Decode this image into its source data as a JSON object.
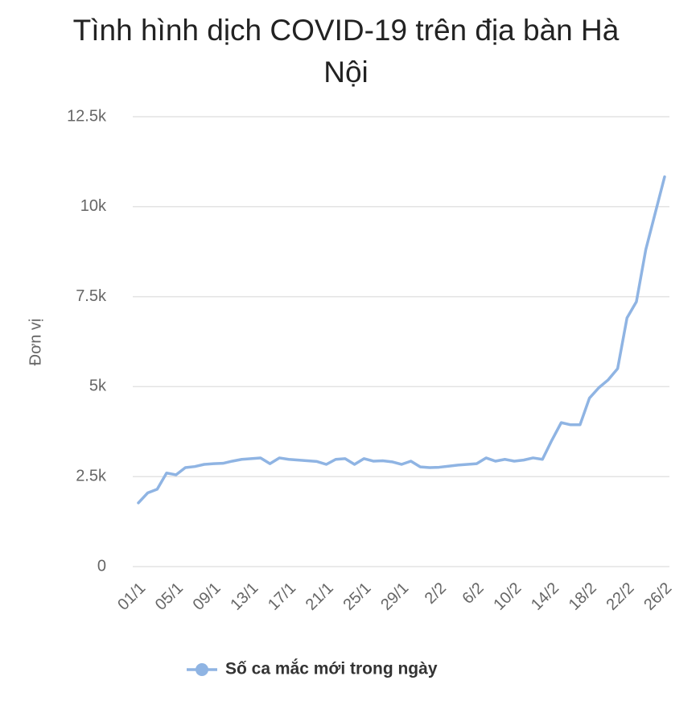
{
  "chart_data": {
    "type": "line",
    "title": "Tình hình dịch COVID-19 trên địa bàn Hà Nội",
    "y_label": "Đơn vị",
    "categories": [
      "01/1",
      null,
      null,
      null,
      "05/1",
      null,
      null,
      null,
      "09/1",
      null,
      null,
      null,
      "13/1",
      null,
      null,
      null,
      "17/1",
      null,
      null,
      null,
      "21/1",
      null,
      null,
      null,
      "25/1",
      null,
      null,
      null,
      "29/1",
      null,
      null,
      null,
      "2/2",
      null,
      null,
      null,
      "6/2",
      null,
      null,
      null,
      "10/2",
      null,
      null,
      null,
      "14/2",
      null,
      null,
      null,
      "18/2",
      null,
      null,
      null,
      "22/2",
      null,
      null,
      null,
      "26/2"
    ],
    "series": [
      {
        "name": "Số ca mắc mới trong ngày",
        "color": "#8fb4e3",
        "values": [
          1770,
          2050,
          2150,
          2600,
          2550,
          2750,
          2780,
          2840,
          2860,
          2870,
          2930,
          2980,
          3000,
          3020,
          2860,
          3020,
          2980,
          2960,
          2940,
          2920,
          2840,
          2980,
          3000,
          2840,
          3000,
          2930,
          2940,
          2910,
          2840,
          2930,
          2770,
          2750,
          2760,
          2790,
          2820,
          2840,
          2860,
          3020,
          2930,
          2980,
          2930,
          2960,
          3020,
          2980,
          3510,
          4000,
          3940,
          3940,
          4680,
          4970,
          5190,
          5500,
          6910,
          7360,
          8810,
          9820,
          10830
        ]
      }
    ],
    "ylim": [
      0,
      12500
    ],
    "yticks": [
      0,
      {
        "value": 2500,
        "label": "2.5k"
      },
      {
        "value": 5000,
        "label": "5k"
      },
      {
        "value": 7500,
        "label": "7.5k"
      },
      {
        "value": 10000,
        "label": "10k"
      },
      {
        "value": 12500,
        "label": "12.5k"
      }
    ],
    "grid": true
  }
}
